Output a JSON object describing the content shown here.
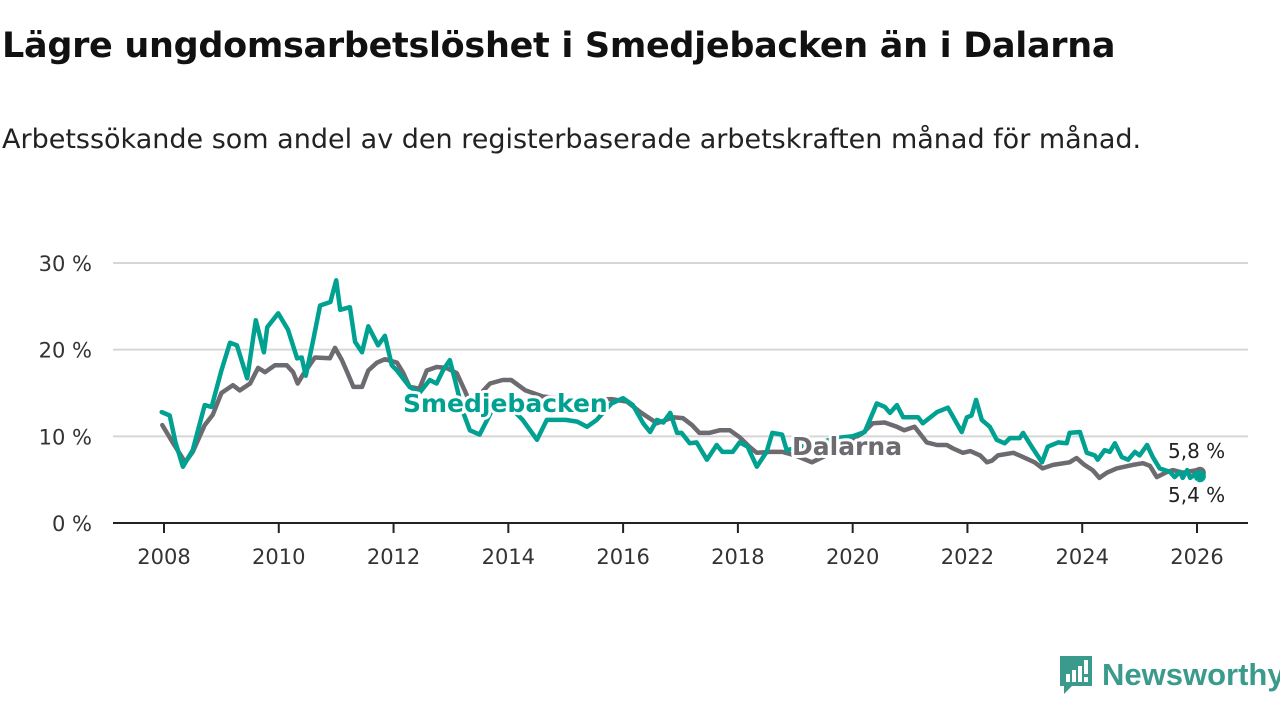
{
  "title": "Lägre ungdomsarbetslöshet i Smedjebacken än i Dalarna",
  "subtitle": "Arbetssökande som andel av den registerbaserade arbetskraften månad för månad.",
  "brand": {
    "name": "Newsworthy",
    "color": "#3a9b8c",
    "icon": "newsworthy-logo-icon"
  },
  "chart_data": {
    "type": "line",
    "title": "Lägre ungdomsarbetslöshet i Smedjebacken än i Dalarna",
    "xlabel": "",
    "ylabel": "",
    "ylim": [
      0,
      30
    ],
    "xlim": [
      2007.6,
      2027.0
    ],
    "yticks": [
      0,
      10,
      20,
      30
    ],
    "ytick_labels": [
      "0 %",
      "10 %",
      "20 %",
      "30 %"
    ],
    "xticks": [
      2008,
      2010,
      2012,
      2014,
      2016,
      2018,
      2020,
      2022,
      2024,
      2026
    ],
    "xtick_labels": [
      "2008",
      "2010",
      "2012",
      "2014",
      "2016",
      "2018",
      "2020",
      "2022",
      "2024",
      "2026"
    ],
    "grid": true,
    "series": [
      {
        "name": "Dalarna",
        "color": "#6d6a70",
        "end_label": "5,8 %",
        "points": [
          [
            2007.97,
            11.3
          ],
          [
            2008.16,
            9.2
          ],
          [
            2008.37,
            7.0
          ],
          [
            2008.5,
            8.2
          ],
          [
            2008.71,
            11.3
          ],
          [
            2008.85,
            12.5
          ],
          [
            2009.0,
            15.0
          ],
          [
            2009.2,
            15.9
          ],
          [
            2009.32,
            15.3
          ],
          [
            2009.5,
            16.1
          ],
          [
            2009.64,
            17.9
          ],
          [
            2009.76,
            17.4
          ],
          [
            2009.93,
            18.2
          ],
          [
            2010.14,
            18.2
          ],
          [
            2010.25,
            17.4
          ],
          [
            2010.33,
            16.1
          ],
          [
            2010.42,
            17.1
          ],
          [
            2010.63,
            19.1
          ],
          [
            2010.89,
            19.0
          ],
          [
            2010.98,
            20.2
          ],
          [
            2011.1,
            18.8
          ],
          [
            2011.2,
            17.3
          ],
          [
            2011.3,
            15.7
          ],
          [
            2011.45,
            15.7
          ],
          [
            2011.56,
            17.6
          ],
          [
            2011.71,
            18.5
          ],
          [
            2011.85,
            18.9
          ],
          [
            2012.06,
            18.5
          ],
          [
            2012.17,
            17.3
          ],
          [
            2012.28,
            15.7
          ],
          [
            2012.45,
            15.5
          ],
          [
            2012.58,
            17.6
          ],
          [
            2012.75,
            18.0
          ],
          [
            2012.92,
            17.9
          ],
          [
            2013.1,
            17.3
          ],
          [
            2013.24,
            15.3
          ],
          [
            2013.36,
            13.4
          ],
          [
            2013.5,
            14.8
          ],
          [
            2013.68,
            16.1
          ],
          [
            2013.9,
            16.5
          ],
          [
            2014.05,
            16.5
          ],
          [
            2014.3,
            15.3
          ],
          [
            2014.6,
            14.6
          ],
          [
            2015.0,
            14.3
          ],
          [
            2015.4,
            14.2
          ],
          [
            2015.8,
            14.3
          ],
          [
            2016.07,
            14.0
          ],
          [
            2016.3,
            12.8
          ],
          [
            2016.59,
            11.5
          ],
          [
            2016.87,
            12.2
          ],
          [
            2017.04,
            12.1
          ],
          [
            2017.2,
            11.3
          ],
          [
            2017.33,
            10.4
          ],
          [
            2017.5,
            10.4
          ],
          [
            2017.68,
            10.7
          ],
          [
            2017.86,
            10.7
          ],
          [
            2018.03,
            9.9
          ],
          [
            2018.2,
            8.8
          ],
          [
            2018.33,
            8.1
          ],
          [
            2018.56,
            8.2
          ],
          [
            2018.78,
            8.2
          ],
          [
            2019.0,
            7.8
          ],
          [
            2019.29,
            7.0
          ],
          [
            2019.6,
            8.0
          ],
          [
            2019.9,
            9.3
          ],
          [
            2020.18,
            10.4
          ],
          [
            2020.35,
            11.5
          ],
          [
            2020.56,
            11.6
          ],
          [
            2020.77,
            11.1
          ],
          [
            2020.9,
            10.7
          ],
          [
            2021.08,
            11.1
          ],
          [
            2021.29,
            9.3
          ],
          [
            2021.47,
            9.0
          ],
          [
            2021.64,
            9.0
          ],
          [
            2021.75,
            8.6
          ],
          [
            2021.92,
            8.1
          ],
          [
            2022.05,
            8.3
          ],
          [
            2022.22,
            7.8
          ],
          [
            2022.34,
            7.0
          ],
          [
            2022.43,
            7.2
          ],
          [
            2022.53,
            7.8
          ],
          [
            2022.8,
            8.1
          ],
          [
            2022.97,
            7.6
          ],
          [
            2023.17,
            7.0
          ],
          [
            2023.31,
            6.3
          ],
          [
            2023.49,
            6.7
          ],
          [
            2023.78,
            7.0
          ],
          [
            2023.9,
            7.5
          ],
          [
            2024.04,
            6.7
          ],
          [
            2024.18,
            6.1
          ],
          [
            2024.3,
            5.2
          ],
          [
            2024.43,
            5.8
          ],
          [
            2024.6,
            6.3
          ],
          [
            2024.88,
            6.7
          ],
          [
            2025.06,
            6.9
          ],
          [
            2025.18,
            6.6
          ],
          [
            2025.3,
            5.3
          ],
          [
            2025.48,
            5.9
          ],
          [
            2025.58,
            6.1
          ],
          [
            2025.75,
            5.8
          ],
          [
            2026.0,
            6.1
          ],
          [
            2026.05,
            5.8
          ]
        ]
      },
      {
        "name": "Smedjebacken",
        "color": "#00a191",
        "end_label": "5,4 %",
        "points": [
          [
            2007.96,
            12.8
          ],
          [
            2008.1,
            12.4
          ],
          [
            2008.2,
            9.3
          ],
          [
            2008.33,
            6.5
          ],
          [
            2008.5,
            8.4
          ],
          [
            2008.71,
            13.6
          ],
          [
            2008.83,
            13.4
          ],
          [
            2009.0,
            17.6
          ],
          [
            2009.15,
            20.8
          ],
          [
            2009.27,
            20.5
          ],
          [
            2009.45,
            16.7
          ],
          [
            2009.6,
            23.4
          ],
          [
            2009.74,
            19.7
          ],
          [
            2009.8,
            22.6
          ],
          [
            2009.99,
            24.2
          ],
          [
            2010.16,
            22.3
          ],
          [
            2010.32,
            19.0
          ],
          [
            2010.4,
            19.1
          ],
          [
            2010.47,
            17.0
          ],
          [
            2010.6,
            21.1
          ],
          [
            2010.72,
            25.1
          ],
          [
            2010.9,
            25.5
          ],
          [
            2011.0,
            28.0
          ],
          [
            2011.07,
            24.6
          ],
          [
            2011.24,
            24.9
          ],
          [
            2011.33,
            20.9
          ],
          [
            2011.45,
            19.7
          ],
          [
            2011.56,
            22.7
          ],
          [
            2011.73,
            20.5
          ],
          [
            2011.85,
            21.6
          ],
          [
            2011.97,
            18.2
          ],
          [
            2012.06,
            17.6
          ],
          [
            2012.28,
            15.7
          ],
          [
            2012.45,
            15.0
          ],
          [
            2012.63,
            16.5
          ],
          [
            2012.75,
            16.1
          ],
          [
            2012.86,
            17.6
          ],
          [
            2012.98,
            18.8
          ],
          [
            2013.07,
            16.5
          ],
          [
            2013.2,
            13.0
          ],
          [
            2013.33,
            10.7
          ],
          [
            2013.5,
            10.2
          ],
          [
            2013.7,
            12.8
          ],
          [
            2013.9,
            13.4
          ],
          [
            2014.1,
            12.9
          ],
          [
            2014.25,
            11.9
          ],
          [
            2014.5,
            9.6
          ],
          [
            2014.67,
            11.9
          ],
          [
            2014.78,
            11.9
          ],
          [
            2015.0,
            11.9
          ],
          [
            2015.2,
            11.7
          ],
          [
            2015.37,
            11.1
          ],
          [
            2015.54,
            11.9
          ],
          [
            2015.8,
            13.8
          ],
          [
            2016.0,
            14.4
          ],
          [
            2016.17,
            13.6
          ],
          [
            2016.35,
            11.5
          ],
          [
            2016.47,
            10.5
          ],
          [
            2016.59,
            11.9
          ],
          [
            2016.7,
            11.6
          ],
          [
            2016.82,
            12.7
          ],
          [
            2016.94,
            10.4
          ],
          [
            2017.02,
            10.4
          ],
          [
            2017.16,
            9.2
          ],
          [
            2017.28,
            9.3
          ],
          [
            2017.46,
            7.3
          ],
          [
            2017.63,
            9.0
          ],
          [
            2017.73,
            8.2
          ],
          [
            2017.91,
            8.2
          ],
          [
            2018.03,
            9.3
          ],
          [
            2018.17,
            8.8
          ],
          [
            2018.33,
            6.5
          ],
          [
            2018.5,
            8.2
          ],
          [
            2018.6,
            10.4
          ],
          [
            2018.77,
            10.2
          ],
          [
            2018.85,
            8.4
          ],
          [
            2019.1,
            8.8
          ],
          [
            2019.4,
            9.2
          ],
          [
            2019.7,
            9.8
          ],
          [
            2020.0,
            10.0
          ],
          [
            2020.21,
            10.5
          ],
          [
            2020.42,
            13.8
          ],
          [
            2020.56,
            13.4
          ],
          [
            2020.65,
            12.7
          ],
          [
            2020.77,
            13.6
          ],
          [
            2020.88,
            12.2
          ],
          [
            2021.14,
            12.2
          ],
          [
            2021.22,
            11.5
          ],
          [
            2021.47,
            12.8
          ],
          [
            2021.66,
            13.3
          ],
          [
            2021.9,
            10.5
          ],
          [
            2021.99,
            12.2
          ],
          [
            2022.07,
            12.4
          ],
          [
            2022.15,
            14.2
          ],
          [
            2022.25,
            11.9
          ],
          [
            2022.39,
            11.1
          ],
          [
            2022.51,
            9.6
          ],
          [
            2022.65,
            9.2
          ],
          [
            2022.74,
            9.8
          ],
          [
            2022.91,
            9.8
          ],
          [
            2022.97,
            10.4
          ],
          [
            2023.12,
            8.8
          ],
          [
            2023.3,
            7.0
          ],
          [
            2023.4,
            8.8
          ],
          [
            2023.58,
            9.3
          ],
          [
            2023.73,
            9.2
          ],
          [
            2023.78,
            10.4
          ],
          [
            2023.96,
            10.5
          ],
          [
            2024.08,
            8.1
          ],
          [
            2024.22,
            7.8
          ],
          [
            2024.27,
            7.3
          ],
          [
            2024.39,
            8.4
          ],
          [
            2024.48,
            8.2
          ],
          [
            2024.57,
            9.2
          ],
          [
            2024.69,
            7.6
          ],
          [
            2024.8,
            7.3
          ],
          [
            2024.92,
            8.2
          ],
          [
            2025.0,
            7.8
          ],
          [
            2025.13,
            9.0
          ],
          [
            2025.23,
            7.6
          ],
          [
            2025.35,
            6.3
          ],
          [
            2025.53,
            5.9
          ],
          [
            2025.61,
            5.3
          ],
          [
            2025.7,
            5.9
          ],
          [
            2025.75,
            5.2
          ],
          [
            2025.83,
            6.1
          ],
          [
            2025.88,
            5.2
          ],
          [
            2026.0,
            5.8
          ],
          [
            2026.05,
            5.4
          ]
        ]
      }
    ]
  }
}
